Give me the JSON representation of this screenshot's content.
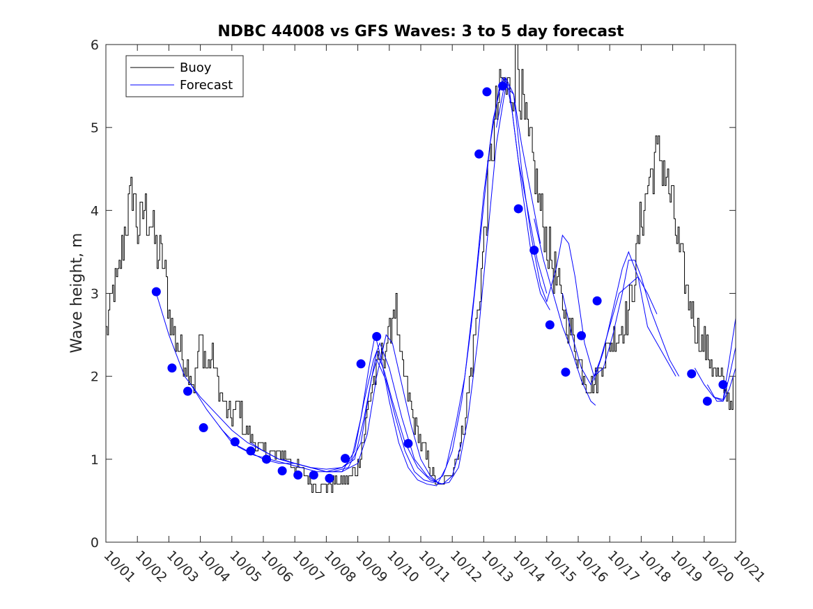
{
  "chart_data": {
    "type": "line",
    "title": "NDBC 44008 vs GFS Waves: 3 to 5 day forecast",
    "xlabel": "",
    "ylabel": "Wave height, m",
    "xlim": [
      0,
      20
    ],
    "ylim": [
      0,
      6
    ],
    "x_tick_values": [
      0,
      1,
      2,
      3,
      4,
      5,
      6,
      7,
      8,
      9,
      10,
      11,
      12,
      13,
      14,
      15,
      16,
      17,
      18,
      19,
      20
    ],
    "x_tick_labels": [
      "10/01",
      "10/02",
      "10/03",
      "10/04",
      "10/05",
      "10/06",
      "10/07",
      "10/08",
      "10/09",
      "10/10",
      "10/11",
      "10/12",
      "10/13",
      "10/14",
      "10/15",
      "10/16",
      "10/17",
      "10/18",
      "10/19",
      "10/20",
      "10/21"
    ],
    "y_tick_values": [
      0,
      1,
      2,
      3,
      4,
      5,
      6
    ],
    "y_tick_labels": [
      "0",
      "1",
      "2",
      "3",
      "4",
      "5",
      "6"
    ],
    "legend": {
      "placement": "top-left",
      "entries": [
        {
          "label": "Buoy",
          "color": "#000000"
        },
        {
          "label": "Forecast",
          "color": "#0000ff"
        }
      ]
    },
    "colors": {
      "buoy": "#000000",
      "forecast": "#0000ff",
      "markers": "#0000ff"
    },
    "buoy_anchors": [
      [
        0.0,
        2.5
      ],
      [
        0.2,
        3.0
      ],
      [
        0.4,
        3.2
      ],
      [
        0.6,
        3.8
      ],
      [
        0.75,
        4.1
      ],
      [
        0.85,
        4.3
      ],
      [
        1.0,
        3.7
      ],
      [
        1.2,
        4.0
      ],
      [
        1.4,
        3.9
      ],
      [
        1.6,
        3.5
      ],
      [
        1.8,
        3.4
      ],
      [
        2.0,
        2.8
      ],
      [
        2.15,
        2.5
      ],
      [
        2.35,
        2.3
      ],
      [
        2.6,
        2.1
      ],
      [
        2.8,
        1.9
      ],
      [
        3.0,
        2.5
      ],
      [
        3.2,
        2.1
      ],
      [
        3.4,
        2.2
      ],
      [
        3.6,
        1.8
      ],
      [
        3.8,
        1.6
      ],
      [
        4.0,
        1.5
      ],
      [
        4.2,
        1.7
      ],
      [
        4.4,
        1.35
      ],
      [
        4.6,
        1.25
      ],
      [
        4.8,
        1.15
      ],
      [
        5.0,
        1.1
      ],
      [
        5.3,
        1.05
      ],
      [
        5.6,
        1.05
      ],
      [
        5.8,
        1.0
      ],
      [
        6.0,
        0.9
      ],
      [
        6.2,
        0.85
      ],
      [
        6.4,
        0.8
      ],
      [
        6.6,
        0.7
      ],
      [
        6.8,
        0.7
      ],
      [
        7.0,
        0.7
      ],
      [
        7.3,
        0.7
      ],
      [
        7.6,
        0.75
      ],
      [
        7.8,
        0.8
      ],
      [
        8.0,
        0.95
      ],
      [
        8.2,
        1.3
      ],
      [
        8.4,
        1.8
      ],
      [
        8.6,
        2.1
      ],
      [
        8.8,
        2.3
      ],
      [
        9.0,
        2.5
      ],
      [
        9.1,
        2.8
      ],
      [
        9.2,
        2.9
      ],
      [
        9.3,
        2.3
      ],
      [
        9.5,
        1.9
      ],
      [
        9.7,
        1.6
      ],
      [
        9.9,
        1.3
      ],
      [
        10.1,
        1.1
      ],
      [
        10.3,
        0.9
      ],
      [
        10.5,
        0.7
      ],
      [
        10.6,
        0.65
      ],
      [
        10.8,
        0.75
      ],
      [
        11.0,
        0.9
      ],
      [
        11.2,
        1.1
      ],
      [
        11.4,
        1.5
      ],
      [
        11.6,
        2.1
      ],
      [
        11.8,
        2.8
      ],
      [
        12.0,
        3.6
      ],
      [
        12.2,
        4.6
      ],
      [
        12.4,
        5.2
      ],
      [
        12.6,
        5.5
      ],
      [
        12.8,
        5.4
      ],
      [
        12.95,
        5.6
      ],
      [
        13.05,
        6.0
      ],
      [
        13.2,
        5.3
      ],
      [
        13.4,
        4.8
      ],
      [
        13.6,
        4.5
      ],
      [
        13.8,
        4.0
      ],
      [
        14.0,
        3.6
      ],
      [
        14.2,
        3.3
      ],
      [
        14.4,
        3.0
      ],
      [
        14.6,
        2.7
      ],
      [
        14.8,
        2.5
      ],
      [
        15.0,
        2.2
      ],
      [
        15.2,
        2.0
      ],
      [
        15.4,
        1.9
      ],
      [
        15.6,
        2.0
      ],
      [
        15.8,
        2.2
      ],
      [
        16.0,
        2.4
      ],
      [
        16.2,
        2.5
      ],
      [
        16.4,
        2.6
      ],
      [
        16.6,
        2.8
      ],
      [
        16.8,
        3.3
      ],
      [
        17.0,
        3.9
      ],
      [
        17.2,
        4.3
      ],
      [
        17.4,
        4.6
      ],
      [
        17.6,
        4.7
      ],
      [
        17.8,
        4.4
      ],
      [
        18.0,
        4.0
      ],
      [
        18.2,
        3.5
      ],
      [
        18.4,
        3.1
      ],
      [
        18.6,
        2.8
      ],
      [
        18.8,
        2.5
      ],
      [
        19.0,
        2.4
      ],
      [
        19.2,
        2.2
      ],
      [
        19.4,
        2.0
      ],
      [
        19.6,
        1.9
      ],
      [
        19.8,
        1.7
      ],
      [
        19.95,
        1.85
      ]
    ],
    "forecast_series": [
      {
        "name": "Forecast",
        "points": [
          [
            1.6,
            3.0
          ],
          [
            2.0,
            2.5
          ],
          [
            2.5,
            2.0
          ],
          [
            3.0,
            1.75
          ],
          [
            3.5,
            1.55
          ],
          [
            4.0,
            1.35
          ],
          [
            4.5,
            1.2
          ],
          [
            5.0,
            1.1
          ],
          [
            5.5,
            1.0
          ],
          [
            6.0,
            0.95
          ],
          [
            6.5,
            0.9
          ],
          [
            7.0,
            0.85
          ],
          [
            7.5,
            0.85
          ],
          [
            8.0,
            0.95
          ],
          [
            8.3,
            1.3
          ],
          [
            8.6,
            2.0
          ],
          [
            8.9,
            2.5
          ],
          [
            9.1,
            2.4
          ],
          [
            9.4,
            1.9
          ],
          [
            9.7,
            1.4
          ],
          [
            10.0,
            1.0
          ],
          [
            10.3,
            0.8
          ],
          [
            10.6,
            0.7
          ]
        ]
      },
      {
        "name": "Forecast",
        "points": [
          [
            2.7,
            1.9
          ],
          [
            3.2,
            1.6
          ],
          [
            3.7,
            1.35
          ],
          [
            4.2,
            1.15
          ],
          [
            4.7,
            1.05
          ],
          [
            5.2,
            1.0
          ],
          [
            5.7,
            0.95
          ],
          [
            6.2,
            0.9
          ],
          [
            6.7,
            0.85
          ],
          [
            7.2,
            0.85
          ],
          [
            7.7,
            0.9
          ],
          [
            8.1,
            1.2
          ],
          [
            8.4,
            1.9
          ],
          [
            8.6,
            2.3
          ],
          [
            8.85,
            2.05
          ],
          [
            9.1,
            1.7
          ],
          [
            9.5,
            1.2
          ],
          [
            9.9,
            0.9
          ],
          [
            10.3,
            0.75
          ],
          [
            10.7,
            0.7
          ],
          [
            11.0,
            0.8
          ],
          [
            11.3,
            1.2
          ]
        ]
      },
      {
        "name": "Forecast",
        "points": [
          [
            3.6,
            1.4
          ],
          [
            4.0,
            1.2
          ],
          [
            4.5,
            1.1
          ],
          [
            5.0,
            1.0
          ],
          [
            5.5,
            0.95
          ],
          [
            6.0,
            0.95
          ],
          [
            6.5,
            0.9
          ],
          [
            7.0,
            0.85
          ],
          [
            7.5,
            0.85
          ],
          [
            7.9,
            1.1
          ],
          [
            8.2,
            1.7
          ],
          [
            8.5,
            2.2
          ],
          [
            8.7,
            2.4
          ],
          [
            9.0,
            2.1
          ],
          [
            9.4,
            1.5
          ],
          [
            9.8,
            1.0
          ],
          [
            10.2,
            0.8
          ],
          [
            10.6,
            0.7
          ],
          [
            10.9,
            0.72
          ],
          [
            11.2,
            0.9
          ],
          [
            11.5,
            1.5
          ],
          [
            11.8,
            2.4
          ],
          [
            12.1,
            3.6
          ],
          [
            12.4,
            4.8
          ],
          [
            12.7,
            5.5
          ],
          [
            12.95,
            5.4
          ],
          [
            13.2,
            4.8
          ],
          [
            13.5,
            4.2
          ],
          [
            13.8,
            3.6
          ]
        ]
      },
      {
        "name": "Forecast",
        "points": [
          [
            4.6,
            1.2
          ],
          [
            5.0,
            1.1
          ],
          [
            5.5,
            1.0
          ],
          [
            6.0,
            0.95
          ],
          [
            6.5,
            0.9
          ],
          [
            7.0,
            0.88
          ],
          [
            7.5,
            0.9
          ],
          [
            7.8,
            1.0
          ],
          [
            8.1,
            1.5
          ],
          [
            8.35,
            2.1
          ],
          [
            8.55,
            2.5
          ],
          [
            8.75,
            2.2
          ],
          [
            9.0,
            1.7
          ],
          [
            9.3,
            1.2
          ],
          [
            9.6,
            0.9
          ],
          [
            9.9,
            0.75
          ],
          [
            10.2,
            0.7
          ],
          [
            10.5,
            0.68
          ],
          [
            10.8,
            0.9
          ],
          [
            11.1,
            1.4
          ],
          [
            11.4,
            2.0
          ],
          [
            11.7,
            3.0
          ],
          [
            12.0,
            4.2
          ],
          [
            12.3,
            5.1
          ],
          [
            12.6,
            5.6
          ],
          [
            12.8,
            5.5
          ],
          [
            13.1,
            4.6
          ],
          [
            13.4,
            4.0
          ],
          [
            13.7,
            3.4
          ],
          [
            14.0,
            3.0
          ]
        ]
      },
      {
        "name": "Forecast",
        "points": [
          [
            5.6,
            1.0
          ],
          [
            6.0,
            0.95
          ],
          [
            6.5,
            0.9
          ],
          [
            7.0,
            0.85
          ],
          [
            7.5,
            0.9
          ],
          [
            7.9,
            1.0
          ],
          [
            8.2,
            1.5
          ],
          [
            8.45,
            2.0
          ],
          [
            8.6,
            2.2
          ],
          [
            8.9,
            1.95
          ],
          [
            9.2,
            1.5
          ],
          [
            9.5,
            1.1
          ],
          [
            9.8,
            0.85
          ],
          [
            10.1,
            0.75
          ],
          [
            10.4,
            0.72
          ],
          [
            10.7,
            0.8
          ],
          [
            11.0,
            1.1
          ],
          [
            11.3,
            1.7
          ],
          [
            11.6,
            2.6
          ],
          [
            11.9,
            3.7
          ],
          [
            12.2,
            4.8
          ],
          [
            12.5,
            5.5
          ],
          [
            12.7,
            5.6
          ],
          [
            12.9,
            5.2
          ],
          [
            13.2,
            4.3
          ],
          [
            13.5,
            3.5
          ],
          [
            13.8,
            3.0
          ],
          [
            14.1,
            2.8
          ]
        ]
      },
      {
        "name": "Forecast",
        "points": [
          [
            12.4,
            5.0
          ],
          [
            12.7,
            5.6
          ],
          [
            12.95,
            5.4
          ],
          [
            13.2,
            4.5
          ],
          [
            13.5,
            3.7
          ],
          [
            13.8,
            3.1
          ],
          [
            14.0,
            2.9
          ],
          [
            14.3,
            3.3
          ],
          [
            14.5,
            3.7
          ],
          [
            14.7,
            3.6
          ],
          [
            14.9,
            3.2
          ],
          [
            15.2,
            2.4
          ],
          [
            15.5,
            2.0
          ],
          [
            15.8,
            2.1
          ],
          [
            16.1,
            2.5
          ],
          [
            16.4,
            3.0
          ],
          [
            16.6,
            3.4
          ],
          [
            16.8,
            3.4
          ],
          [
            17.0,
            3.2
          ],
          [
            17.3,
            2.8
          ],
          [
            17.6,
            2.5
          ],
          [
            17.9,
            2.2
          ],
          [
            18.2,
            2.0
          ]
        ]
      },
      {
        "name": "Forecast",
        "points": [
          [
            13.6,
            3.9
          ],
          [
            13.9,
            3.4
          ],
          [
            14.2,
            3.0
          ],
          [
            14.5,
            2.6
          ],
          [
            14.8,
            2.3
          ],
          [
            15.1,
            1.95
          ],
          [
            15.4,
            1.7
          ],
          [
            15.55,
            1.65
          ]
        ]
      },
      {
        "name": "Forecast",
        "points": [
          [
            14.5,
            3.0
          ],
          [
            14.8,
            2.5
          ],
          [
            15.1,
            2.1
          ],
          [
            15.4,
            1.9
          ],
          [
            15.7,
            2.2
          ],
          [
            16.0,
            2.6
          ],
          [
            16.3,
            3.0
          ],
          [
            16.6,
            3.1
          ],
          [
            16.9,
            3.2
          ],
          [
            17.2,
            3.0
          ],
          [
            17.5,
            2.75
          ]
        ]
      },
      {
        "name": "Forecast",
        "points": [
          [
            15.5,
            1.95
          ],
          [
            15.8,
            2.3
          ],
          [
            16.1,
            2.8
          ],
          [
            16.4,
            3.3
          ],
          [
            16.6,
            3.5
          ],
          [
            16.9,
            3.2
          ],
          [
            17.2,
            2.6
          ],
          [
            17.5,
            2.4
          ],
          [
            17.8,
            2.2
          ],
          [
            18.1,
            2.0
          ]
        ]
      },
      {
        "name": "Forecast",
        "points": [
          [
            18.7,
            2.1
          ],
          [
            19.0,
            1.9
          ],
          [
            19.3,
            1.75
          ],
          [
            19.6,
            1.7
          ],
          [
            19.8,
            1.85
          ],
          [
            20.0,
            2.1
          ]
        ]
      },
      {
        "name": "Forecast",
        "points": [
          [
            19.1,
            1.9
          ],
          [
            19.4,
            1.7
          ],
          [
            19.6,
            1.7
          ],
          [
            19.8,
            2.0
          ],
          [
            20.0,
            2.35
          ]
        ]
      },
      {
        "name": "Forecast",
        "points": [
          [
            19.3,
            1.75
          ],
          [
            19.6,
            1.72
          ],
          [
            19.8,
            2.2
          ],
          [
            20.0,
            2.7
          ]
        ]
      }
    ],
    "forecast_markers": [
      [
        1.6,
        3.02
      ],
      [
        2.1,
        2.1
      ],
      [
        2.6,
        1.82
      ],
      [
        3.1,
        1.38
      ],
      [
        4.1,
        1.21
      ],
      [
        4.6,
        1.1
      ],
      [
        5.1,
        1.0
      ],
      [
        5.6,
        0.86
      ],
      [
        6.1,
        0.81
      ],
      [
        6.6,
        0.81
      ],
      [
        7.1,
        0.77
      ],
      [
        7.6,
        1.01
      ],
      [
        8.1,
        2.15
      ],
      [
        8.6,
        2.48
      ],
      [
        9.6,
        1.19
      ],
      [
        11.85,
        4.68
      ],
      [
        12.1,
        5.43
      ],
      [
        12.6,
        5.5
      ],
      [
        13.1,
        4.02
      ],
      [
        13.6,
        3.52
      ],
      [
        14.1,
        2.62
      ],
      [
        14.6,
        2.05
      ],
      [
        15.1,
        2.49
      ],
      [
        15.6,
        2.91
      ],
      [
        18.6,
        2.03
      ],
      [
        19.1,
        1.7
      ],
      [
        19.6,
        1.9
      ]
    ]
  }
}
